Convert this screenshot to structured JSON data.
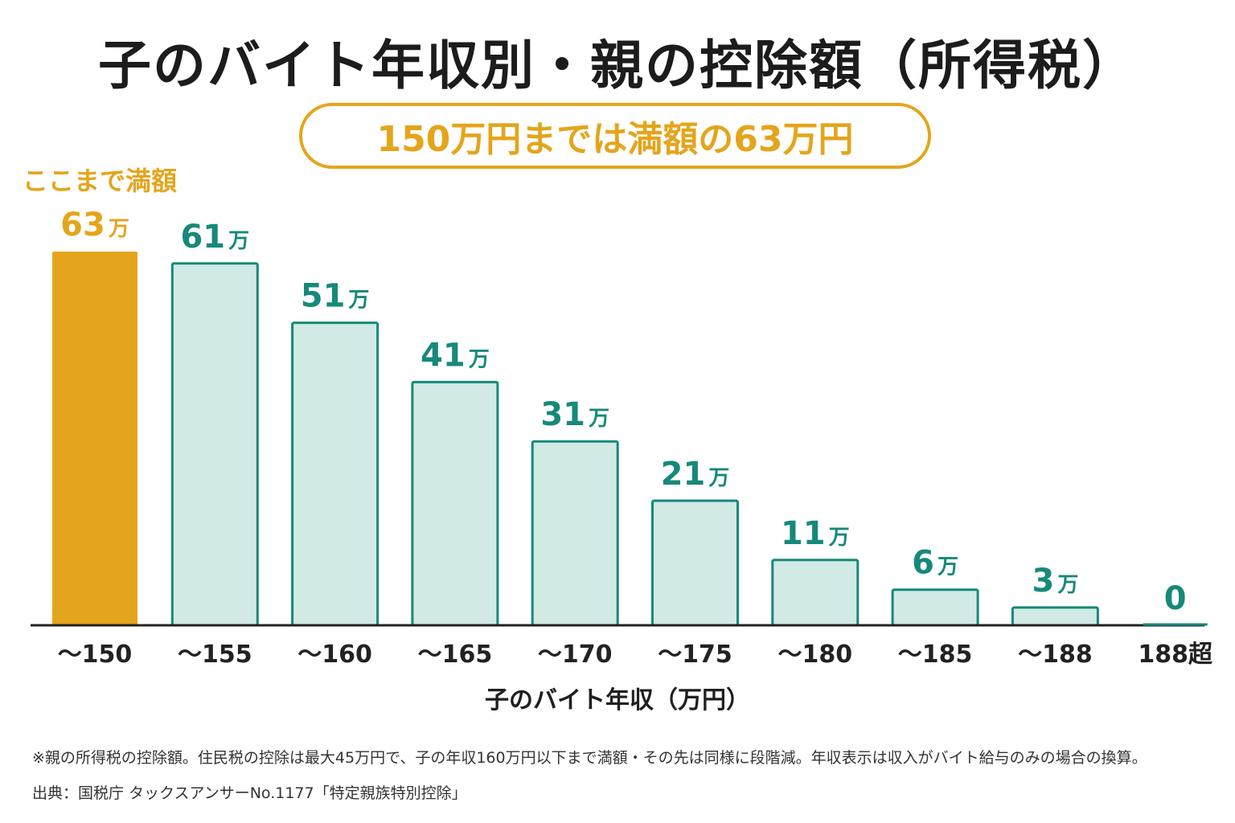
{
  "title": "子のバイト年収別・親の控除額（所得税）",
  "callout": "150万円までは満額の63万円",
  "highlight_note": "ここまで満額",
  "colors": {
    "accent": "#E4A51C",
    "bar_fill": "#D2EAE6",
    "bar_stroke": "#16897A",
    "value_text": "#16897A",
    "axis": "#222222"
  },
  "chart_data": {
    "type": "bar",
    "title": "子のバイト年収別・親の控除額（所得税）",
    "xlabel": "子のバイト年収（万円）",
    "ylabel": "",
    "categories": [
      "〜150",
      "〜155",
      "〜160",
      "〜165",
      "〜170",
      "〜175",
      "〜180",
      "〜185",
      "〜188",
      "188超"
    ],
    "values": [
      63,
      61,
      51,
      41,
      31,
      21,
      11,
      6,
      3,
      0
    ],
    "value_labels": [
      "63",
      "61",
      "51",
      "41",
      "31",
      "21",
      "11",
      "6",
      "3",
      "0"
    ],
    "value_unit": "万",
    "highlight_index": 0,
    "ylim": [
      0,
      63
    ],
    "grid": false
  },
  "footnote": "※親の所得税の控除額。住民税の控除は最大45万円で、子の年収160万円以下まで満額・その先は同様に段階減。年収表示は収入がバイト給与のみの場合の換算。",
  "source": "出典：国税庁 タックスアンサーNo.1177「特定親族特別控除」"
}
